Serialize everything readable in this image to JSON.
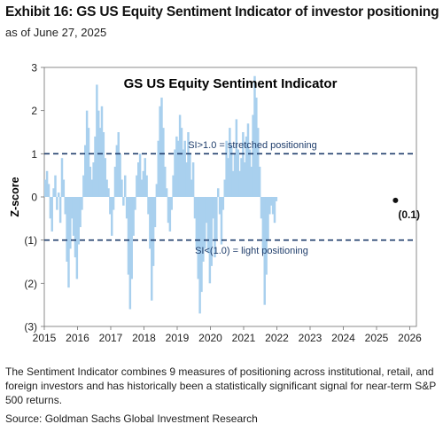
{
  "header": {
    "title": "Exhibit 16: GS US Equity Sentiment Indicator of investor positioning",
    "subtitle": "as of June 27, 2025"
  },
  "chart_data": {
    "type": "bar",
    "title": "GS US Equity  Sentiment Indicator",
    "ylabel": "Z-score",
    "xlabel": "",
    "ylim": [
      -3,
      3
    ],
    "xlim": [
      2015,
      2026.2
    ],
    "y_ticks": [
      3,
      2,
      1,
      0,
      -1,
      -2,
      -3
    ],
    "y_tick_labels": [
      "3",
      "2",
      "1",
      "0",
      "(1)",
      "(2)",
      "(3)"
    ],
    "x_ticks": [
      2015,
      2016,
      2017,
      2018,
      2019,
      2020,
      2021,
      2022,
      2023,
      2024,
      2025,
      2026
    ],
    "x_tick_labels": [
      "2015",
      "2016",
      "2017",
      "2018",
      "2019",
      "2020",
      "2021",
      "2022",
      "2023",
      "2024",
      "2025",
      "2026"
    ],
    "bar_color": "#a9d0ee",
    "reference_lines": [
      {
        "y": 1.0,
        "label": "SI>1.0 = stretched positioning",
        "color": "#1f3d6b",
        "style": "dashed"
      },
      {
        "y": -1.0,
        "label": "SI<(1.0) = light positioning",
        "color": "#1f3d6b",
        "style": "dashed"
      }
    ],
    "last_point": {
      "x": 2025.49,
      "y": -0.1,
      "label": "(0.1)"
    },
    "series": [
      {
        "values_start": 2015.0,
        "values_step": 0.05,
        "values": [
          0.4,
          0.6,
          0.3,
          -0.5,
          -0.8,
          0.2,
          0.5,
          -0.3,
          0.1,
          -0.6,
          0.9,
          0.4,
          -0.4,
          -1.5,
          -2.1,
          -1.2,
          -0.5,
          -0.9,
          -1.4,
          -1.9,
          -1.1,
          -0.7,
          -0.3,
          0.5,
          1.2,
          2.0,
          1.6,
          0.7,
          0.4,
          0.8,
          1.4,
          2.6,
          2.0,
          1.6,
          2.1,
          1.5,
          0.9,
          0.4,
          0.2,
          -0.4,
          -0.9,
          -0.3,
          0.7,
          1.2,
          1.5,
          1.0,
          0.4,
          -0.2,
          0.5,
          -0.5,
          -1.8,
          -2.6,
          -1.9,
          -0.9,
          -0.3,
          0.5,
          0.8,
          1.0,
          0.4,
          0.6,
          0.9,
          0.5,
          -0.4,
          -1.2,
          -2.4,
          -1.6,
          -0.7,
          0.3,
          1.3,
          2.1,
          2.3,
          1.6,
          0.7,
          0.2,
          -0.6,
          -0.8,
          -0.3,
          0.5,
          1.1,
          1.4,
          1.3,
          1.9,
          1.6,
          1.1,
          1.3,
          0.8,
          1.5,
          1.0,
          0.4,
          0.8,
          -0.5,
          -1.2,
          -1.9,
          -2.7,
          -2.2,
          -1.5,
          -1.2,
          -0.6,
          -1.3,
          -2.0,
          -1.6,
          -0.5,
          -1.4,
          -1.0,
          0.2,
          -0.4,
          -1.1,
          -0.3,
          0.4,
          1.3,
          0.9,
          1.6,
          1.2,
          0.6,
          1.0,
          1.8,
          1.1,
          0.6,
          0.9,
          1.5,
          0.8,
          1.4,
          1.7,
          1.1,
          0.7,
          1.9,
          2.8,
          2.3,
          1.6,
          0.7,
          -0.5,
          -1.3,
          -2.5,
          -1.8,
          -1.0,
          -0.4,
          -0.2,
          -0.4,
          -0.6,
          -0.1
        ]
      }
    ]
  },
  "caption": "The Sentiment Indicator combines 9 measures of positioning across institutional, retail, and foreign investors and has historically been a statistically significant signal for near-term S&P 500 returns.",
  "source": "Source: Goldman Sachs Global Investment Research"
}
